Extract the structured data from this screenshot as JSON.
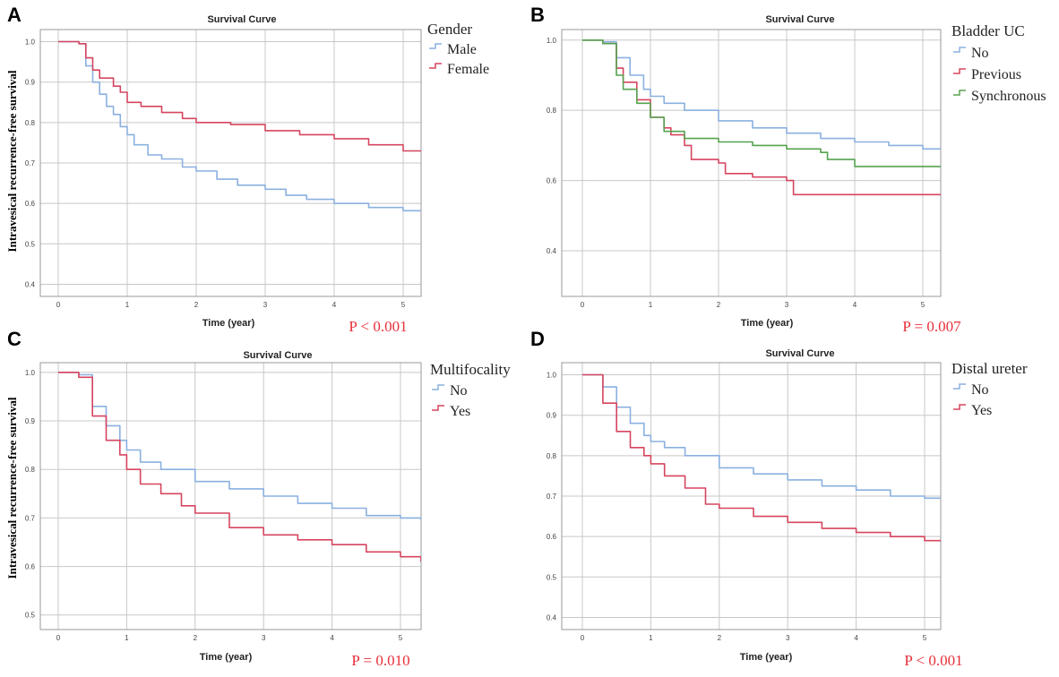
{
  "chart_data": [
    {
      "panel": "A",
      "type": "line",
      "title": "Survival Curve",
      "xlabel": "Time (year)",
      "ylabel": "Intravesical recurrence-free survival",
      "xlim": [
        0,
        5.3
      ],
      "ylim": [
        0.37,
        1.03
      ],
      "xticks": [
        "0",
        "1",
        "2",
        "3",
        "4",
        "5"
      ],
      "yticks": [
        "1.0",
        "0.9",
        "0.8",
        "0.7",
        "0.6",
        "0.5",
        "0.4"
      ],
      "ytick_values": [
        1.0,
        0.9,
        0.8,
        0.7,
        0.6,
        0.5,
        0.4
      ],
      "legend_title": "Gender",
      "p_value": "P < 0.001",
      "series": [
        {
          "name": "Male",
          "color": "#8ab0e0",
          "points": [
            [
              0,
              1.0
            ],
            [
              0.3,
              0.995
            ],
            [
              0.4,
              0.94
            ],
            [
              0.5,
              0.9
            ],
            [
              0.6,
              0.87
            ],
            [
              0.7,
              0.84
            ],
            [
              0.8,
              0.82
            ],
            [
              0.9,
              0.79
            ],
            [
              1.0,
              0.77
            ],
            [
              1.1,
              0.745
            ],
            [
              1.3,
              0.72
            ],
            [
              1.5,
              0.71
            ],
            [
              1.8,
              0.69
            ],
            [
              2.0,
              0.68
            ],
            [
              2.3,
              0.66
            ],
            [
              2.6,
              0.645
            ],
            [
              3.0,
              0.635
            ],
            [
              3.3,
              0.62
            ],
            [
              3.6,
              0.61
            ],
            [
              4.0,
              0.6
            ],
            [
              4.5,
              0.59
            ],
            [
              5.0,
              0.582
            ],
            [
              5.3,
              0.58
            ]
          ]
        },
        {
          "name": "Female",
          "color": "#d6455f",
          "points": [
            [
              0,
              1.0
            ],
            [
              0.3,
              0.995
            ],
            [
              0.4,
              0.96
            ],
            [
              0.5,
              0.93
            ],
            [
              0.6,
              0.91
            ],
            [
              0.8,
              0.89
            ],
            [
              0.9,
              0.875
            ],
            [
              1.0,
              0.85
            ],
            [
              1.2,
              0.84
            ],
            [
              1.5,
              0.825
            ],
            [
              1.8,
              0.81
            ],
            [
              2.0,
              0.8
            ],
            [
              2.5,
              0.795
            ],
            [
              3.0,
              0.78
            ],
            [
              3.5,
              0.77
            ],
            [
              4.0,
              0.76
            ],
            [
              4.5,
              0.745
            ],
            [
              5.0,
              0.73
            ],
            [
              5.3,
              0.725
            ]
          ]
        }
      ]
    },
    {
      "panel": "B",
      "type": "line",
      "title": "Survival Curve",
      "xlabel": "Time (year)",
      "ylabel": "",
      "xlim": [
        0,
        5.3
      ],
      "ylim": [
        0.27,
        1.03
      ],
      "xticks": [
        "0",
        "1",
        "2",
        "3",
        "4",
        "5"
      ],
      "yticks": [
        "1.0",
        "0.8",
        "0.6",
        "0.4"
      ],
      "ytick_values": [
        1.0,
        0.8,
        0.6,
        0.4
      ],
      "legend_title": "Bladder UC",
      "p_value": "P = 0.007",
      "series": [
        {
          "name": "No",
          "color": "#8ab0e0",
          "points": [
            [
              0,
              1.0
            ],
            [
              0.3,
              0.995
            ],
            [
              0.5,
              0.95
            ],
            [
              0.7,
              0.9
            ],
            [
              0.9,
              0.86
            ],
            [
              1.0,
              0.84
            ],
            [
              1.2,
              0.82
            ],
            [
              1.5,
              0.8
            ],
            [
              2.0,
              0.77
            ],
            [
              2.5,
              0.75
            ],
            [
              3.0,
              0.735
            ],
            [
              3.5,
              0.72
            ],
            [
              4.0,
              0.71
            ],
            [
              4.5,
              0.7
            ],
            [
              5.0,
              0.69
            ],
            [
              5.3,
              0.685
            ]
          ]
        },
        {
          "name": "Previous",
          "color": "#d6455f",
          "points": [
            [
              0,
              1.0
            ],
            [
              0.3,
              0.99
            ],
            [
              0.5,
              0.92
            ],
            [
              0.6,
              0.88
            ],
            [
              0.8,
              0.83
            ],
            [
              1.0,
              0.78
            ],
            [
              1.2,
              0.75
            ],
            [
              1.3,
              0.73
            ],
            [
              1.5,
              0.7
            ],
            [
              1.6,
              0.66
            ],
            [
              2.0,
              0.65
            ],
            [
              2.1,
              0.62
            ],
            [
              2.5,
              0.61
            ],
            [
              3.0,
              0.6
            ],
            [
              3.1,
              0.56
            ],
            [
              5.3,
              0.56
            ]
          ]
        },
        {
          "name": "Synchronous",
          "color": "#55a24f",
          "points": [
            [
              0,
              1.0
            ],
            [
              0.3,
              0.99
            ],
            [
              0.5,
              0.9
            ],
            [
              0.6,
              0.86
            ],
            [
              0.8,
              0.82
            ],
            [
              1.0,
              0.78
            ],
            [
              1.2,
              0.74
            ],
            [
              1.5,
              0.72
            ],
            [
              2.0,
              0.71
            ],
            [
              2.5,
              0.7
            ],
            [
              3.0,
              0.69
            ],
            [
              3.5,
              0.68
            ],
            [
              3.6,
              0.66
            ],
            [
              4.0,
              0.64
            ],
            [
              5.3,
              0.64
            ]
          ]
        }
      ]
    },
    {
      "panel": "C",
      "type": "line",
      "title": "Survival Curve",
      "xlabel": "Time (year)",
      "ylabel": "Intravesical recurrence-free survival",
      "xlim": [
        0,
        5.3
      ],
      "ylim": [
        0.47,
        1.02
      ],
      "xticks": [
        "0",
        "1",
        "2",
        "3",
        "4",
        "5"
      ],
      "yticks": [
        "1.0",
        "0.9",
        "0.8",
        "0.7",
        "0.6",
        "0.5"
      ],
      "ytick_values": [
        1.0,
        0.9,
        0.8,
        0.7,
        0.6,
        0.5
      ],
      "legend_title": "Multifocality",
      "p_value": "P = 0.010",
      "series": [
        {
          "name": "No",
          "color": "#8ab0e0",
          "points": [
            [
              0,
              1.0
            ],
            [
              0.3,
              0.995
            ],
            [
              0.5,
              0.93
            ],
            [
              0.7,
              0.89
            ],
            [
              0.9,
              0.86
            ],
            [
              1.0,
              0.84
            ],
            [
              1.2,
              0.815
            ],
            [
              1.5,
              0.8
            ],
            [
              2.0,
              0.775
            ],
            [
              2.5,
              0.76
            ],
            [
              3.0,
              0.745
            ],
            [
              3.5,
              0.73
            ],
            [
              4.0,
              0.72
            ],
            [
              4.5,
              0.705
            ],
            [
              5.0,
              0.7
            ],
            [
              5.3,
              0.695
            ]
          ]
        },
        {
          "name": "Yes",
          "color": "#d6455f",
          "points": [
            [
              0,
              1.0
            ],
            [
              0.3,
              0.99
            ],
            [
              0.5,
              0.91
            ],
            [
              0.7,
              0.86
            ],
            [
              0.9,
              0.83
            ],
            [
              1.0,
              0.8
            ],
            [
              1.2,
              0.77
            ],
            [
              1.5,
              0.75
            ],
            [
              1.8,
              0.725
            ],
            [
              2.0,
              0.71
            ],
            [
              2.5,
              0.68
            ],
            [
              3.0,
              0.665
            ],
            [
              3.5,
              0.655
            ],
            [
              4.0,
              0.645
            ],
            [
              4.5,
              0.63
            ],
            [
              5.0,
              0.62
            ],
            [
              5.3,
              0.61
            ]
          ]
        }
      ]
    },
    {
      "panel": "D",
      "type": "line",
      "title": "Survival Curve",
      "xlabel": "Time (year)",
      "ylabel": "",
      "xlim": [
        0,
        5.3
      ],
      "ylim": [
        0.37,
        1.03
      ],
      "xticks": [
        "0",
        "1",
        "2",
        "3",
        "4",
        "5"
      ],
      "yticks": [
        "1.0",
        "0.9",
        "0.8",
        "0.7",
        "0.6",
        "0.5",
        "0.4"
      ],
      "ytick_values": [
        1.0,
        0.9,
        0.8,
        0.7,
        0.6,
        0.5,
        0.4
      ],
      "legend_title": "Distal ureter",
      "p_value": "P < 0.001",
      "series": [
        {
          "name": "No",
          "color": "#8ab0e0",
          "points": [
            [
              0,
              1.0
            ],
            [
              0.2,
              1.0
            ],
            [
              0.3,
              0.97
            ],
            [
              0.5,
              0.92
            ],
            [
              0.7,
              0.88
            ],
            [
              0.9,
              0.85
            ],
            [
              1.0,
              0.835
            ],
            [
              1.2,
              0.82
            ],
            [
              1.5,
              0.8
            ],
            [
              2.0,
              0.77
            ],
            [
              2.5,
              0.755
            ],
            [
              3.0,
              0.74
            ],
            [
              3.5,
              0.725
            ],
            [
              4.0,
              0.715
            ],
            [
              4.5,
              0.7
            ],
            [
              5.0,
              0.695
            ],
            [
              5.3,
              0.69
            ]
          ]
        },
        {
          "name": "Yes",
          "color": "#d6455f",
          "points": [
            [
              0,
              1.0
            ],
            [
              0.2,
              1.0
            ],
            [
              0.3,
              0.93
            ],
            [
              0.5,
              0.86
            ],
            [
              0.7,
              0.82
            ],
            [
              0.9,
              0.8
            ],
            [
              1.0,
              0.78
            ],
            [
              1.2,
              0.75
            ],
            [
              1.5,
              0.72
            ],
            [
              1.8,
              0.68
            ],
            [
              2.0,
              0.67
            ],
            [
              2.5,
              0.65
            ],
            [
              3.0,
              0.635
            ],
            [
              3.5,
              0.62
            ],
            [
              4.0,
              0.61
            ],
            [
              4.5,
              0.6
            ],
            [
              5.0,
              0.59
            ],
            [
              5.3,
              0.59
            ]
          ]
        }
      ]
    }
  ]
}
